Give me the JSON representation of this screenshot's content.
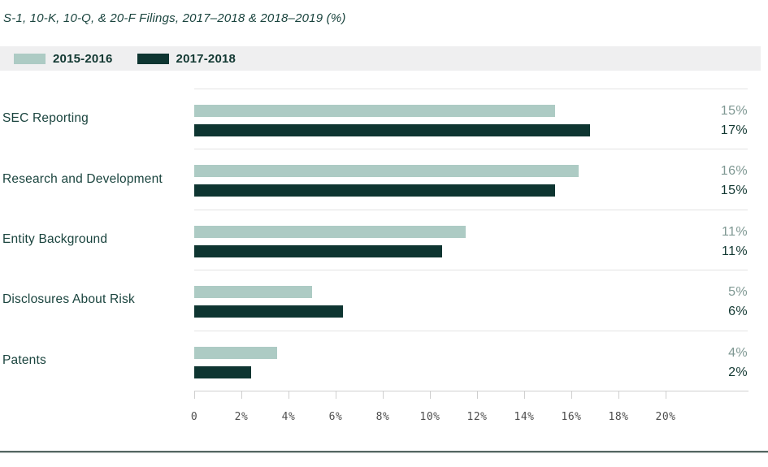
{
  "page": {
    "title": "S-1, 10-K, 10-Q, & 20-F Filings, 2017–2018 & 2018–2019 (%)"
  },
  "legend": {
    "items": [
      {
        "label": "2015-2016",
        "color": "#adcbc4"
      },
      {
        "label": "2017-2018",
        "color": "#0e3531"
      }
    ]
  },
  "chart_data": {
    "type": "bar",
    "orientation": "horizontal",
    "title": "S-1, 10-K, 10-Q, & 20-F Filings, 2017–2018 & 2018–2019 (%)",
    "categories": [
      "SEC Reporting",
      "Research and Development",
      "Entity Background",
      "Disclosures About Risk",
      "Patents"
    ],
    "series": [
      {
        "name": "2015-2016",
        "color": "#adcbc4",
        "values": [
          15,
          16,
          11,
          5,
          4
        ]
      },
      {
        "name": "2017-2018",
        "color": "#0e3531",
        "values": [
          17,
          15,
          11,
          6,
          2
        ]
      }
    ],
    "value_labels": [
      [
        "15%",
        "17%"
      ],
      [
        "16%",
        "15%"
      ],
      [
        "11%",
        "11%"
      ],
      [
        "5%",
        "6%"
      ],
      [
        "4%",
        "2%"
      ]
    ],
    "bar_visual_pct": [
      [
        15.3,
        16.8
      ],
      [
        16.3,
        15.3
      ],
      [
        11.5,
        10.5
      ],
      [
        5.0,
        6.3
      ],
      [
        3.5,
        2.4
      ]
    ],
    "x_ticks": [
      "0",
      "2%",
      "4%",
      "6%",
      "8%",
      "10%",
      "12%",
      "14%",
      "16%",
      "18%",
      "20%"
    ],
    "xlim": [
      0,
      20
    ],
    "xlabel": "",
    "ylabel": "",
    "grid": "row-dividers",
    "legend_position": "top"
  },
  "colors": {
    "accent_light": "#adcbc4",
    "accent_dark": "#0e3531",
    "text_dark": "#1a443e",
    "value_light_label": "#7f9893",
    "tick_label": "#4f4f4f",
    "legend_background": "#efeff0"
  }
}
